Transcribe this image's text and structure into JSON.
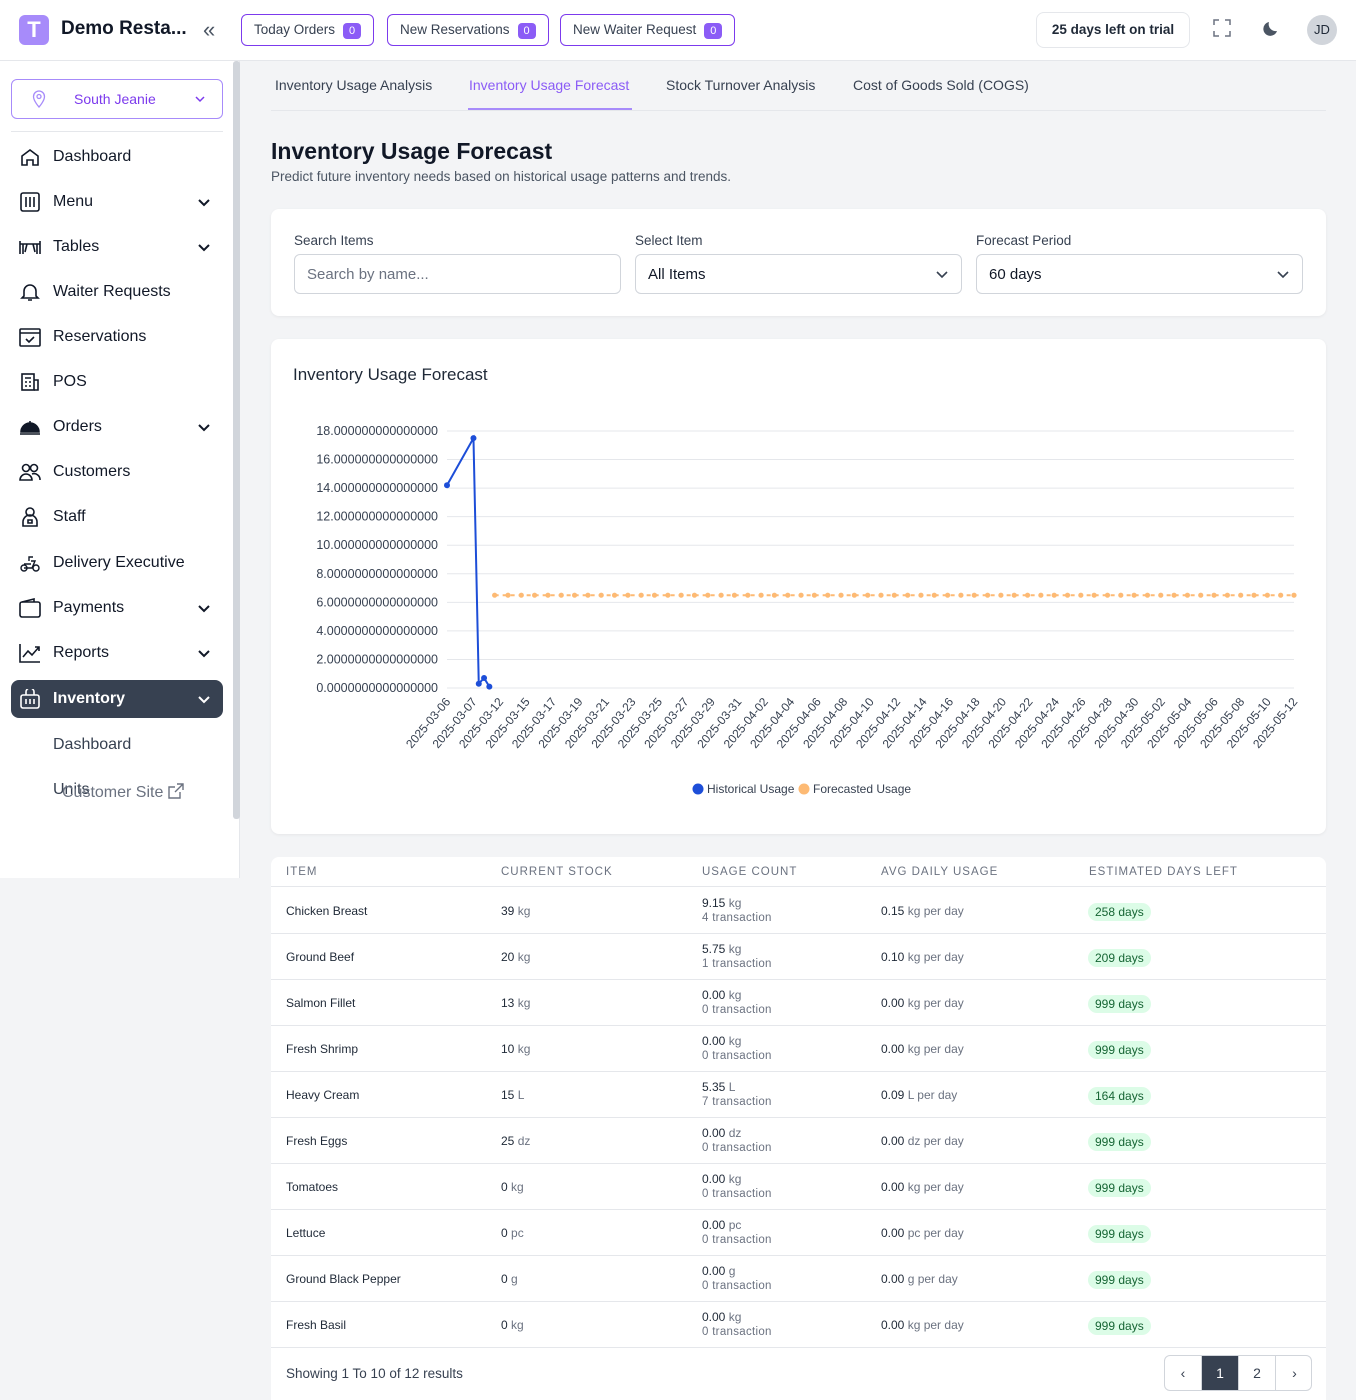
{
  "app": {
    "logo_letter": "T",
    "name": "Demo Resta..."
  },
  "topbar": {
    "today_orders": {
      "label": "Today Orders",
      "count": "0"
    },
    "new_reservations": {
      "label": "New Reservations",
      "count": "0"
    },
    "new_waiter_request": {
      "label": "New Waiter Request",
      "count": "0"
    },
    "trial": "25 days left on trial",
    "avatar": "JD"
  },
  "sidebar": {
    "branch": "South Jeanie",
    "items": [
      {
        "label": "Dashboard",
        "icon": "home-icon"
      },
      {
        "label": "Menu",
        "icon": "menu-book-icon"
      },
      {
        "label": "Tables",
        "icon": "table-icon"
      },
      {
        "label": "Waiter Requests",
        "icon": "bell-icon"
      },
      {
        "label": "Reservations",
        "icon": "calendar-icon"
      },
      {
        "label": "POS",
        "icon": "pos-icon"
      },
      {
        "label": "Orders",
        "icon": "cloche-icon"
      },
      {
        "label": "Customers",
        "icon": "users-icon"
      },
      {
        "label": "Staff",
        "icon": "staff-icon"
      },
      {
        "label": "Delivery Executive",
        "icon": "scooter-icon"
      },
      {
        "label": "Payments",
        "icon": "wallet-icon"
      },
      {
        "label": "Reports",
        "icon": "chart-line-icon"
      },
      {
        "label": "Inventory",
        "icon": "basket-icon"
      }
    ],
    "inventory_sub": [
      "Dashboard",
      "Units"
    ],
    "customer_site": "Customer Site"
  },
  "tabs": [
    "Inventory Usage Analysis",
    "Inventory Usage Forecast",
    "Stock Turnover Analysis",
    "Cost of Goods Sold (COGS)"
  ],
  "page": {
    "title": "Inventory Usage Forecast",
    "subtitle": "Predict future inventory needs based on historical usage patterns and trends."
  },
  "filters": {
    "search_label": "Search Items",
    "search_placeholder": "Search by name...",
    "item_label": "Select Item",
    "item_value": "All Items",
    "period_label": "Forecast Period",
    "period_value": "60 days"
  },
  "chart_data": {
    "type": "line",
    "title": "Inventory Usage Forecast",
    "y_ticks": [
      "0.0000000000000000",
      "2.0000000000000000",
      "4.0000000000000000",
      "6.0000000000000000",
      "8.0000000000000000",
      "10.000000000000000",
      "12.000000000000000",
      "14.000000000000000",
      "16.000000000000000",
      "18.000000000000000"
    ],
    "ylim": [
      0,
      18
    ],
    "x_tick_labels": [
      "2025-03-06",
      "2025-03-07",
      "2025-03-12",
      "2025-03-15",
      "2025-03-17",
      "2025-03-19",
      "2025-03-21",
      "2025-03-23",
      "2025-03-25",
      "2025-03-27",
      "2025-03-29",
      "2025-03-31",
      "2025-04-02",
      "2025-04-04",
      "2025-04-06",
      "2025-04-08",
      "2025-04-10",
      "2025-04-12",
      "2025-04-14",
      "2025-04-16",
      "2025-04-18",
      "2025-04-20",
      "2025-04-22",
      "2025-04-24",
      "2025-04-26",
      "2025-04-28",
      "2025-04-30",
      "2025-05-02",
      "2025-05-04",
      "2025-05-06",
      "2025-05-08",
      "2025-05-10",
      "2025-05-12"
    ],
    "series": [
      {
        "name": "Historical Usage",
        "color": "#1d4ed8",
        "x": [
          "2025-03-06",
          "2025-03-07",
          "2025-03-08",
          "2025-03-09",
          "2025-03-10"
        ],
        "values": [
          14.2,
          17.5,
          0.3,
          0.7,
          0.1
        ]
      },
      {
        "name": "Forecasted Usage",
        "color": "#fdba74",
        "start": "2025-03-11",
        "end": "2025-05-12",
        "value": 6.5
      }
    ],
    "legend": "bottom",
    "grid": true
  },
  "table": {
    "headers": [
      "ITEM",
      "CURRENT STOCK",
      "USAGE COUNT",
      "AVG DAILY USAGE",
      "ESTIMATED DAYS LEFT"
    ],
    "rows": [
      {
        "item": "Chicken Breast",
        "stock": "39",
        "stock_unit": "kg",
        "usage": "9.15",
        "usage_unit": "kg",
        "tx": "4 transaction",
        "avg": "0.15",
        "avg_unit": "kg per day",
        "days": "258 days"
      },
      {
        "item": "Ground Beef",
        "stock": "20",
        "stock_unit": "kg",
        "usage": "5.75",
        "usage_unit": "kg",
        "tx": "1 transaction",
        "avg": "0.10",
        "avg_unit": "kg per day",
        "days": "209 days"
      },
      {
        "item": "Salmon Fillet",
        "stock": "13",
        "stock_unit": "kg",
        "usage": "0.00",
        "usage_unit": "kg",
        "tx": "0 transaction",
        "avg": "0.00",
        "avg_unit": "kg per day",
        "days": "999 days"
      },
      {
        "item": "Fresh Shrimp",
        "stock": "10",
        "stock_unit": "kg",
        "usage": "0.00",
        "usage_unit": "kg",
        "tx": "0 transaction",
        "avg": "0.00",
        "avg_unit": "kg per day",
        "days": "999 days"
      },
      {
        "item": "Heavy Cream",
        "stock": "15",
        "stock_unit": "L",
        "usage": "5.35",
        "usage_unit": "L",
        "tx": "7 transaction",
        "avg": "0.09",
        "avg_unit": "L per day",
        "days": "164 days"
      },
      {
        "item": "Fresh Eggs",
        "stock": "25",
        "stock_unit": "dz",
        "usage": "0.00",
        "usage_unit": "dz",
        "tx": "0 transaction",
        "avg": "0.00",
        "avg_unit": "dz per day",
        "days": "999 days"
      },
      {
        "item": "Tomatoes",
        "stock": "0",
        "stock_unit": "kg",
        "usage": "0.00",
        "usage_unit": "kg",
        "tx": "0 transaction",
        "avg": "0.00",
        "avg_unit": "kg per day",
        "days": "999 days"
      },
      {
        "item": "Lettuce",
        "stock": "0",
        "stock_unit": "pc",
        "usage": "0.00",
        "usage_unit": "pc",
        "tx": "0 transaction",
        "avg": "0.00",
        "avg_unit": "pc per day",
        "days": "999 days"
      },
      {
        "item": "Ground Black Pepper",
        "stock": "0",
        "stock_unit": "g",
        "usage": "0.00",
        "usage_unit": "g",
        "tx": "0 transaction",
        "avg": "0.00",
        "avg_unit": "g per day",
        "days": "999 days"
      },
      {
        "item": "Fresh Basil",
        "stock": "0",
        "stock_unit": "kg",
        "usage": "0.00",
        "usage_unit": "kg",
        "tx": "0 transaction",
        "avg": "0.00",
        "avg_unit": "kg per day",
        "days": "999 days"
      }
    ],
    "showing": "Showing 1 To 10 of 12 results",
    "pages": [
      "1",
      "2"
    ]
  }
}
